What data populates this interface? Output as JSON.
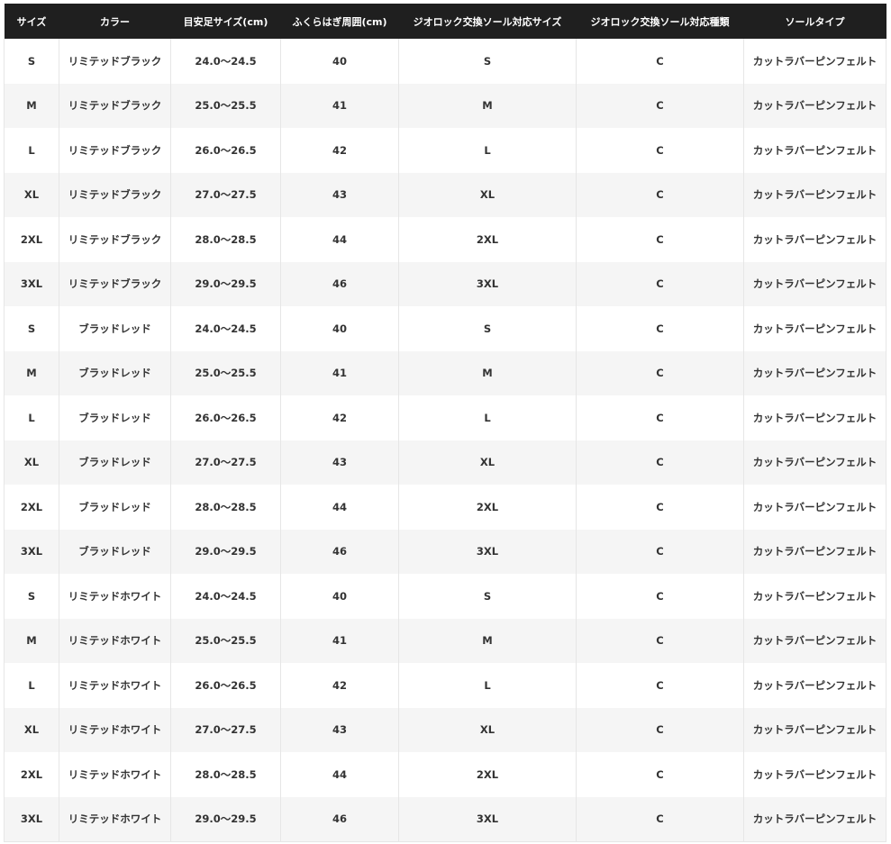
{
  "table": {
    "headers": [
      "サイズ",
      "カラー",
      "目安足サイズ(cm)",
      "ふくらはぎ周囲(cm)",
      "ジオロック交換ソール対応サイズ",
      "ジオロック交換ソール対応種類",
      "ソールタイプ"
    ],
    "rows": [
      [
        "S",
        "リミテッドブラック",
        "24.0〜24.5",
        "40",
        "S",
        "C",
        "カットラバーピンフェルト"
      ],
      [
        "M",
        "リミテッドブラック",
        "25.0〜25.5",
        "41",
        "M",
        "C",
        "カットラバーピンフェルト"
      ],
      [
        "L",
        "リミテッドブラック",
        "26.0〜26.5",
        "42",
        "L",
        "C",
        "カットラバーピンフェルト"
      ],
      [
        "XL",
        "リミテッドブラック",
        "27.0〜27.5",
        "43",
        "XL",
        "C",
        "カットラバーピンフェルト"
      ],
      [
        "2XL",
        "リミテッドブラック",
        "28.0〜28.5",
        "44",
        "2XL",
        "C",
        "カットラバーピンフェルト"
      ],
      [
        "3XL",
        "リミテッドブラック",
        "29.0〜29.5",
        "46",
        "3XL",
        "C",
        "カットラバーピンフェルト"
      ],
      [
        "S",
        "ブラッドレッド",
        "24.0〜24.5",
        "40",
        "S",
        "C",
        "カットラバーピンフェルト"
      ],
      [
        "M",
        "ブラッドレッド",
        "25.0〜25.5",
        "41",
        "M",
        "C",
        "カットラバーピンフェルト"
      ],
      [
        "L",
        "ブラッドレッド",
        "26.0〜26.5",
        "42",
        "L",
        "C",
        "カットラバーピンフェルト"
      ],
      [
        "XL",
        "ブラッドレッド",
        "27.0〜27.5",
        "43",
        "XL",
        "C",
        "カットラバーピンフェルト"
      ],
      [
        "2XL",
        "ブラッドレッド",
        "28.0〜28.5",
        "44",
        "2XL",
        "C",
        "カットラバーピンフェルト"
      ],
      [
        "3XL",
        "ブラッドレッド",
        "29.0〜29.5",
        "46",
        "3XL",
        "C",
        "カットラバーピンフェルト"
      ],
      [
        "S",
        "リミテッドホワイト",
        "24.0〜24.5",
        "40",
        "S",
        "C",
        "カットラバーピンフェルト"
      ],
      [
        "M",
        "リミテッドホワイト",
        "25.0〜25.5",
        "41",
        "M",
        "C",
        "カットラバーピンフェルト"
      ],
      [
        "L",
        "リミテッドホワイト",
        "26.0〜26.5",
        "42",
        "L",
        "C",
        "カットラバーピンフェルト"
      ],
      [
        "XL",
        "リミテッドホワイト",
        "27.0〜27.5",
        "43",
        "XL",
        "C",
        "カットラバーピンフェルト"
      ],
      [
        "2XL",
        "リミテッドホワイト",
        "28.0〜28.5",
        "44",
        "2XL",
        "C",
        "カットラバーピンフェルト"
      ],
      [
        "3XL",
        "リミテッドホワイト",
        "29.0〜29.5",
        "46",
        "3XL",
        "C",
        "カットラバーピンフェルト"
      ]
    ]
  }
}
